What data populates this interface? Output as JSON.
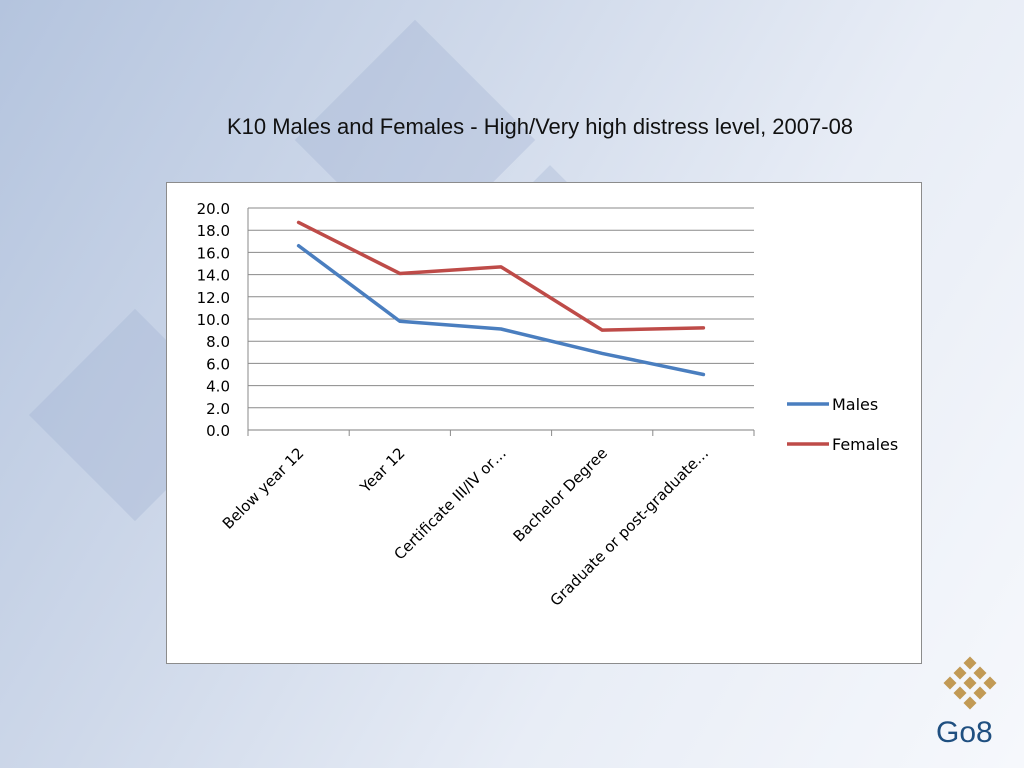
{
  "title": "K10 Males and Females - High/Very high distress level, 2007-08",
  "chart_data": {
    "type": "line",
    "title": "",
    "xlabel": "",
    "ylabel": "",
    "categories": [
      "Below year 12",
      "Year 12",
      "Certificate III/IV or…",
      "Bachelor Degree",
      "Graduate or post-graduate…"
    ],
    "series": [
      {
        "name": "Males",
        "color": "#4a7ebf",
        "values": [
          16.6,
          9.8,
          9.1,
          6.9,
          5.0
        ]
      },
      {
        "name": "Females",
        "color": "#be4b48",
        "values": [
          18.7,
          14.1,
          14.7,
          9.0,
          9.2
        ]
      }
    ],
    "yticks": [
      "0.0",
      "2.0",
      "4.0",
      "6.0",
      "8.0",
      "10.0",
      "12.0",
      "14.0",
      "16.0",
      "18.0",
      "20.0"
    ],
    "ylim": [
      0,
      20
    ],
    "grid": true,
    "legend": "right"
  },
  "logo": {
    "text": "Go8",
    "color": "#c29a55",
    "icon": "diamond-grid-logo"
  }
}
